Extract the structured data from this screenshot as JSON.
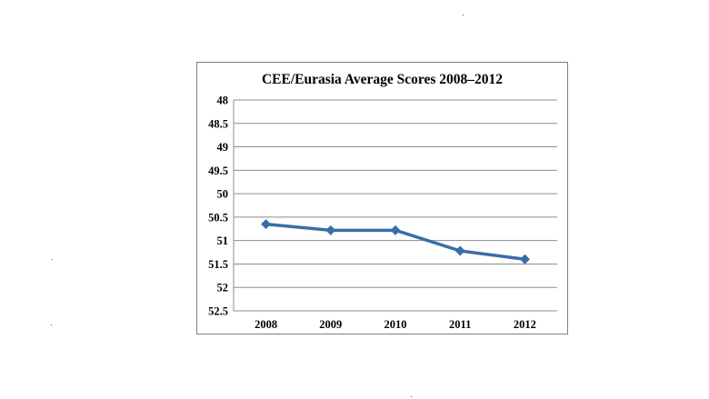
{
  "chart_data": {
    "type": "line",
    "title": "CEE/Eurasia Average Scores 2008–2012",
    "xlabel": "",
    "ylabel": "",
    "categories": [
      "2008",
      "2009",
      "2010",
      "2011",
      "2012"
    ],
    "series": [
      {
        "values": [
          50.65,
          50.78,
          50.78,
          51.22,
          51.4
        ],
        "color": "#3a6ea8"
      }
    ],
    "ylim": [
      48,
      52.5
    ],
    "y_inverted": true,
    "yticks": [
      "48",
      "48.5",
      "49",
      "49.5",
      "50",
      "50.5",
      "51",
      "51.5",
      "52",
      "52.5"
    ],
    "grid": true,
    "legend": "none",
    "marker": "diamond"
  }
}
